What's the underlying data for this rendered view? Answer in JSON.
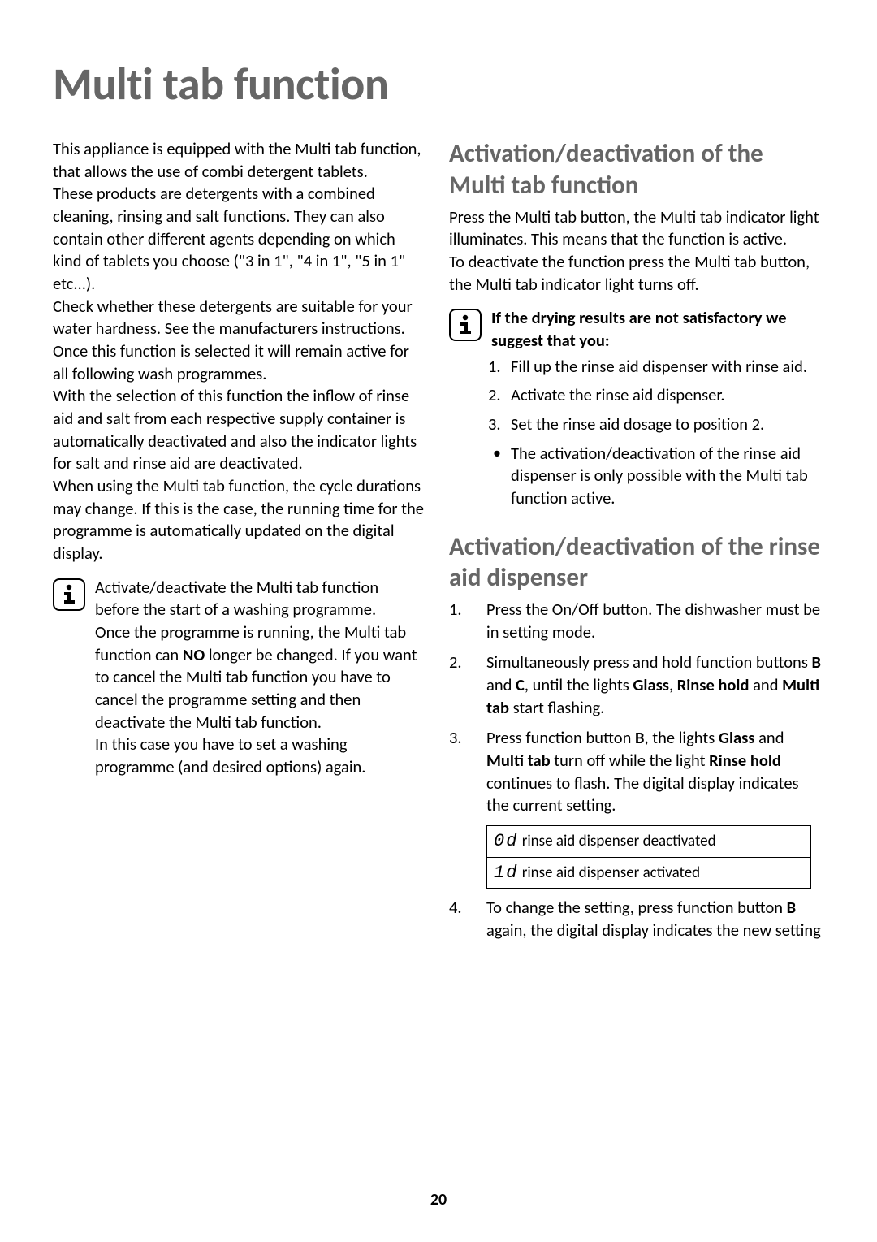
{
  "page_number": "20",
  "title": "Multi tab function",
  "colors": {
    "heading": "#666666",
    "text": "#000000",
    "background": "#ffffff",
    "border": "#000000"
  },
  "font_sizes": {
    "title": 56,
    "heading": 31,
    "body": 20.5,
    "table": 19
  },
  "left": {
    "p1": "This appliance is equipped with the Multi tab function, that allows the use of combi detergent tablets.",
    "p2": "These products are detergents with a combined cleaning, rinsing and salt functions. They can also contain other different agents depending on which kind of tablets you choose (\"3 in 1\", \"4 in 1\", \"5 in 1\" etc...).",
    "p3": "Check whether these detergents are suitable for your water hardness. See the manufacturers instructions.",
    "p4": "Once this function is selected it will remain active for all following wash programmes.",
    "p5": "With the selection of this function the inflow of rinse aid and salt from each respective supply container is automatically deactivated and also the indicator lights for salt and rinse aid are deactivated.",
    "p6": "When using the Multi tab function, the cycle durations may change. If this is the case, the running time for the programme is automatically updated on the digital display.",
    "info1_a": "Activate/deactivate the Multi tab function before the start of a washing programme.",
    "info1_b_pre": "Once the programme is running, the Multi tab function can ",
    "info1_b_bold": "NO",
    "info1_b_post": "  longer be changed. If you want to cancel the Multi tab function you have to cancel the programme setting and then deactivate the Multi tab function.",
    "info1_c": "In this case you have to set a washing programme (and desired options) again."
  },
  "right": {
    "h1": "Activation/deactivation of the Multi tab function",
    "h1_p1": "Press the Multi tab button, the Multi tab indicator light illuminates. This means that the function is active.",
    "h1_p2": "To deactivate the function press the Multi tab button, the Multi tab indicator light turns off.",
    "info_heading": "If the drying results are not satisfactory we suggest that you:",
    "drying_list": [
      "Fill up the rinse aid dispenser with rinse aid.",
      "Activate the rinse aid dispenser.",
      "Set the rinse aid dosage to position 2."
    ],
    "drying_bullet": "The activation/deactivation of the rinse aid dispenser is only possible with the Multi tab function active.",
    "h2": "Activation/deactivation of the rinse aid dispenser",
    "steps": [
      {
        "pre": "Press the On/Off button. The dishwasher must be in setting mode.",
        "bolds": []
      },
      {
        "text": "Simultaneously press and hold function buttons <b>B</b> and <b>C</b>, until the lights <b>Glass</b>, <b>Rinse hold</b> and <b>Multi tab</b> start flashing."
      },
      {
        "text": "Press function button <b>B</b>, the lights <b>Glass</b> and <b>Multi tab</b> turn off while the light <b>Rinse hold</b> continues to flash. The digital display indicates the current setting."
      },
      {
        "text": "To change the setting, press function button <b>B</b> again, the digital display indicates the new setting"
      }
    ],
    "table": [
      {
        "code": "0d",
        "label": " rinse aid dispenser deactivated"
      },
      {
        "code": "1d",
        "label": " rinse aid dispenser activated"
      }
    ]
  }
}
